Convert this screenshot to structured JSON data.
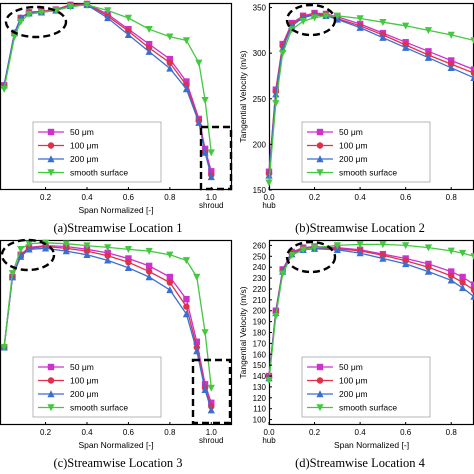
{
  "colors": {
    "50um": "#cc33cc",
    "100um": "#e0304a",
    "200um": "#3a6fd0",
    "smooth": "#44c840",
    "annotation": "#000000"
  },
  "legend_entries": [
    "50 μm",
    "100 μm",
    "200 μm",
    "smooth surface"
  ],
  "chart_data": [
    {
      "type": "line",
      "caption": "(a)Streamwise Location 1",
      "xlabel": "Span Normalized [-]",
      "ylabel": "",
      "xlim": [
        -0.02,
        1.1
      ],
      "ylim": [
        0,
        1
      ],
      "x_ticks": [
        "0.2",
        "0.4",
        "0.6",
        "0.8",
        "1.0"
      ],
      "x_tick_values": [
        0.2,
        0.4,
        0.6,
        0.8,
        1.0
      ],
      "x_tick_sublabel": "shroud",
      "y_ticks": [],
      "legend_position": "bottom-center",
      "annotations": [
        "dashed ellipse near hub peak",
        "dashed box near shroud"
      ],
      "series": [
        {
          "name": "50 μm",
          "x": [
            0.0,
            0.05,
            0.08,
            0.12,
            0.18,
            0.25,
            0.32,
            0.4,
            0.5,
            0.6,
            0.7,
            0.8,
            0.88,
            0.94,
            0.97,
            1.0
          ],
          "y": [
            0.56,
            0.84,
            0.92,
            0.95,
            0.955,
            0.965,
            0.99,
            0.995,
            0.94,
            0.86,
            0.78,
            0.7,
            0.58,
            0.38,
            0.22,
            0.1
          ]
        },
        {
          "name": "100 μm",
          "x": [
            0.0,
            0.05,
            0.08,
            0.12,
            0.18,
            0.25,
            0.32,
            0.4,
            0.5,
            0.6,
            0.7,
            0.8,
            0.88,
            0.94,
            0.97,
            1.0
          ],
          "y": [
            0.56,
            0.84,
            0.92,
            0.95,
            0.955,
            0.965,
            0.99,
            0.995,
            0.93,
            0.85,
            0.76,
            0.68,
            0.56,
            0.37,
            0.2,
            0.08
          ]
        },
        {
          "name": "200 μm",
          "x": [
            0.0,
            0.05,
            0.08,
            0.12,
            0.18,
            0.25,
            0.32,
            0.4,
            0.5,
            0.6,
            0.7,
            0.8,
            0.88,
            0.94,
            0.97,
            1.0
          ],
          "y": [
            0.56,
            0.84,
            0.92,
            0.945,
            0.95,
            0.96,
            0.985,
            0.99,
            0.92,
            0.83,
            0.74,
            0.65,
            0.54,
            0.36,
            0.2,
            0.07
          ]
        },
        {
          "name": "smooth surface",
          "x": [
            0.0,
            0.05,
            0.08,
            0.12,
            0.18,
            0.25,
            0.32,
            0.4,
            0.5,
            0.6,
            0.7,
            0.8,
            0.88,
            0.94,
            0.97,
            1.0
          ],
          "y": [
            0.54,
            0.82,
            0.9,
            0.94,
            0.95,
            0.96,
            0.98,
            0.99,
            0.96,
            0.92,
            0.86,
            0.82,
            0.8,
            0.68,
            0.48,
            0.2
          ]
        }
      ]
    },
    {
      "type": "line",
      "caption": "(b)Streamwise Location 2",
      "xlabel": "",
      "ylabel": "Tangential Velocity (m/s)",
      "xlim": [
        0,
        0.9
      ],
      "ylim": [
        150,
        355
      ],
      "x_ticks": [
        "0.0",
        "0.2",
        "0.4",
        "0.6",
        "0.8"
      ],
      "x_tick_values": [
        0.0,
        0.2,
        0.4,
        0.6,
        0.8
      ],
      "x_tick_sublabel": "hub",
      "y_ticks": [
        "150",
        "200",
        "250",
        "300",
        "350"
      ],
      "y_tick_values": [
        150,
        200,
        250,
        300,
        350
      ],
      "legend_position": "bottom-center",
      "annotations": [
        "dashed ellipse near hub peak"
      ],
      "series": [
        {
          "name": "50 μm",
          "x": [
            0.0,
            0.03,
            0.06,
            0.1,
            0.15,
            0.2,
            0.25,
            0.3,
            0.4,
            0.5,
            0.6,
            0.7,
            0.8,
            0.9
          ],
          "y": [
            170,
            260,
            310,
            333,
            341,
            344,
            343,
            340,
            332,
            322,
            312,
            302,
            292,
            282
          ]
        },
        {
          "name": "100 μm",
          "x": [
            0.0,
            0.03,
            0.06,
            0.1,
            0.15,
            0.2,
            0.25,
            0.3,
            0.4,
            0.5,
            0.6,
            0.7,
            0.8,
            0.9
          ],
          "y": [
            168,
            258,
            308,
            332,
            340,
            343,
            342,
            338,
            330,
            320,
            309,
            298,
            288,
            278
          ]
        },
        {
          "name": "200 μm",
          "x": [
            0.0,
            0.03,
            0.06,
            0.1,
            0.15,
            0.2,
            0.25,
            0.3,
            0.4,
            0.5,
            0.6,
            0.7,
            0.8,
            0.9
          ],
          "y": [
            166,
            255,
            305,
            330,
            339,
            342,
            341,
            337,
            328,
            317,
            306,
            295,
            284,
            273
          ]
        },
        {
          "name": "smooth surface",
          "x": [
            0.0,
            0.03,
            0.06,
            0.1,
            0.15,
            0.2,
            0.25,
            0.3,
            0.4,
            0.5,
            0.6,
            0.7,
            0.8,
            0.9
          ],
          "y": [
            158,
            245,
            300,
            326,
            335,
            339,
            341,
            341,
            338,
            334,
            330,
            325,
            320,
            314
          ]
        }
      ]
    },
    {
      "type": "line",
      "caption": "(c)Streamwise Location 3",
      "xlabel": "Span Normalized [-]",
      "ylabel": "",
      "xlim": [
        -0.02,
        1.1
      ],
      "ylim": [
        0,
        1
      ],
      "x_ticks": [
        "0.2",
        "0.4",
        "0.6",
        "0.8",
        "1.0"
      ],
      "x_tick_values": [
        0.2,
        0.4,
        0.6,
        0.8,
        1.0
      ],
      "x_tick_sublabel": "shroud",
      "y_ticks": [],
      "legend_position": "bottom-center",
      "annotations": [
        "dashed ellipse near hub peak",
        "dashed box near shroud"
      ],
      "series": [
        {
          "name": "50 μm",
          "x": [
            0.0,
            0.04,
            0.08,
            0.12,
            0.2,
            0.3,
            0.4,
            0.5,
            0.6,
            0.7,
            0.8,
            0.88,
            0.93,
            0.97,
            1.0
          ],
          "y": [
            0.42,
            0.8,
            0.92,
            0.96,
            0.97,
            0.965,
            0.95,
            0.93,
            0.9,
            0.86,
            0.8,
            0.68,
            0.45,
            0.22,
            0.12
          ]
        },
        {
          "name": "100 μm",
          "x": [
            0.0,
            0.04,
            0.08,
            0.12,
            0.2,
            0.3,
            0.4,
            0.5,
            0.6,
            0.7,
            0.8,
            0.88,
            0.93,
            0.97,
            1.0
          ],
          "y": [
            0.42,
            0.8,
            0.92,
            0.955,
            0.965,
            0.955,
            0.94,
            0.915,
            0.88,
            0.83,
            0.77,
            0.64,
            0.42,
            0.2,
            0.1
          ]
        },
        {
          "name": "200 μm",
          "x": [
            0.0,
            0.04,
            0.08,
            0.12,
            0.2,
            0.3,
            0.4,
            0.5,
            0.6,
            0.7,
            0.8,
            0.88,
            0.93,
            0.97,
            1.0
          ],
          "y": [
            0.42,
            0.8,
            0.91,
            0.95,
            0.955,
            0.94,
            0.92,
            0.89,
            0.85,
            0.8,
            0.73,
            0.6,
            0.4,
            0.19,
            0.08
          ]
        },
        {
          "name": "smooth surface",
          "x": [
            0.0,
            0.04,
            0.08,
            0.12,
            0.2,
            0.3,
            0.4,
            0.5,
            0.6,
            0.7,
            0.8,
            0.88,
            0.93,
            0.97,
            1.0
          ],
          "y": [
            0.42,
            0.82,
            0.95,
            0.98,
            0.985,
            0.98,
            0.97,
            0.96,
            0.95,
            0.94,
            0.92,
            0.89,
            0.8,
            0.5,
            0.2
          ]
        }
      ]
    },
    {
      "type": "line",
      "caption": "(d)Streamwise Location 4",
      "xlabel": "Span Normalized [-]",
      "ylabel": "Tangential Velocity (m/s)",
      "xlim": [
        0,
        0.9
      ],
      "ylim": [
        95,
        265
      ],
      "x_ticks": [
        "0.0",
        "0.2",
        "0.4",
        "0.6",
        "0.8"
      ],
      "x_tick_values": [
        0.0,
        0.2,
        0.4,
        0.6,
        0.8
      ],
      "x_tick_sublabel": "hub",
      "y_ticks": [
        "100",
        "110",
        "120",
        "130",
        "140",
        "150",
        "160",
        "170",
        "180",
        "190",
        "200",
        "210",
        "220",
        "230",
        "240",
        "250",
        "260"
      ],
      "y_tick_values": [
        100,
        110,
        120,
        130,
        140,
        150,
        160,
        170,
        180,
        190,
        200,
        210,
        220,
        230,
        240,
        250,
        260
      ],
      "legend_position": "bottom-center",
      "annotations": [
        "dashed ellipse near hub peak"
      ],
      "series": [
        {
          "name": "50 μm",
          "x": [
            0.0,
            0.03,
            0.06,
            0.1,
            0.15,
            0.2,
            0.3,
            0.4,
            0.5,
            0.6,
            0.7,
            0.8,
            0.85,
            0.9
          ],
          "y": [
            140,
            200,
            238,
            254,
            258,
            259,
            258,
            256,
            252,
            248,
            243,
            236,
            231,
            224
          ]
        },
        {
          "name": "100 μm",
          "x": [
            0.0,
            0.03,
            0.06,
            0.1,
            0.15,
            0.2,
            0.3,
            0.4,
            0.5,
            0.6,
            0.7,
            0.8,
            0.85,
            0.9
          ],
          "y": [
            139,
            199,
            237,
            253,
            257,
            258,
            257,
            255,
            251,
            246,
            240,
            232,
            226,
            219
          ]
        },
        {
          "name": "200 μm",
          "x": [
            0.0,
            0.03,
            0.06,
            0.1,
            0.15,
            0.2,
            0.3,
            0.4,
            0.5,
            0.6,
            0.7,
            0.8,
            0.85,
            0.9
          ],
          "y": [
            138,
            198,
            236,
            252,
            256,
            257,
            256,
            253,
            248,
            243,
            236,
            228,
            221,
            213
          ]
        },
        {
          "name": "smooth surface",
          "x": [
            0.0,
            0.03,
            0.06,
            0.1,
            0.15,
            0.2,
            0.3,
            0.4,
            0.5,
            0.6,
            0.7,
            0.8,
            0.85,
            0.9
          ],
          "y": [
            136,
            195,
            234,
            251,
            256,
            258,
            260,
            261,
            261,
            260,
            258,
            255,
            253,
            250
          ]
        }
      ]
    }
  ]
}
